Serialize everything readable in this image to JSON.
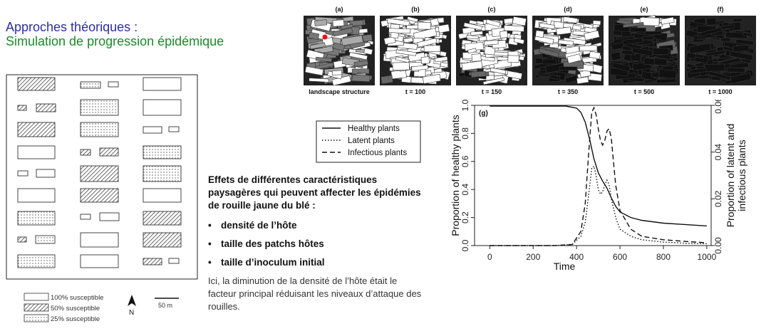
{
  "header": {
    "line1": "Approches théoriques :",
    "line2": "Simulation de progression épidémique"
  },
  "text": {
    "heading": "Effets de différentes caractéristiques paysagères qui peuvent affecter les épidémies de rouille jaune du blé :",
    "bullets": [
      "densité de l’hôte",
      "taille des patchs hôtes",
      "taille d’inoculum initial"
    ],
    "paragraph": "Ici, la diminution de la densité de l’hôte était le facteur principal réduisant les niveaux d’attaque des rouilles."
  },
  "landscape_figure": {
    "legend": [
      "100% susceptible",
      "50% susceptible",
      "25% susceptible"
    ],
    "north": "N",
    "scale": "50 m"
  },
  "panels": {
    "labels": [
      "(a)",
      "(b)",
      "(c)",
      "(d)",
      "(e)",
      "(f)"
    ],
    "captions": [
      "landscape structure",
      "t = 100",
      "t = 150",
      "t = 350",
      "t = 500",
      "t = 1000"
    ],
    "infection_level": [
      0,
      0.05,
      0.1,
      0.3,
      0.6,
      0.85
    ]
  },
  "chart_data": {
    "type": "line",
    "panel_label": "(g)",
    "xlabel": "Time",
    "ylabel_left": "Proportion of healthy plants",
    "ylabel_right": "Proportion of latent and infectious plants",
    "xlim": [
      -70,
      1020
    ],
    "ylim_left": [
      0,
      1.0
    ],
    "ylim_right": [
      0,
      0.06
    ],
    "x_ticks": [
      "0",
      "200",
      "400",
      "600",
      "800",
      "1000"
    ],
    "y_left_ticks": [
      "0.0",
      "0.2",
      "0.4",
      "0.6",
      "0.8",
      "1.0"
    ],
    "y_right_ticks": [
      "0.00",
      "0.02",
      "0.04",
      "0.06"
    ],
    "legend": [
      "Healthy plants",
      "Latent plants",
      "Infectious plants"
    ],
    "series": [
      {
        "name": "Healthy plants",
        "axis": "left",
        "style": "solid",
        "x": [
          0,
          200,
          350,
          400,
          420,
          440,
          460,
          480,
          500,
          520,
          540,
          560,
          580,
          600,
          650,
          700,
          800,
          900,
          1000
        ],
        "y": [
          0.995,
          0.995,
          0.995,
          0.98,
          0.95,
          0.88,
          0.76,
          0.62,
          0.52,
          0.46,
          0.41,
          0.34,
          0.28,
          0.24,
          0.2,
          0.18,
          0.16,
          0.15,
          0.14
        ]
      },
      {
        "name": "Latent plants",
        "axis": "right",
        "style": "dotted",
        "x": [
          0,
          300,
          380,
          420,
          440,
          460,
          470,
          480,
          490,
          500,
          510,
          520,
          530,
          540,
          550,
          560,
          580,
          600,
          650,
          700,
          800,
          900,
          1000
        ],
        "y": [
          0,
          0,
          0.0005,
          0.004,
          0.01,
          0.025,
          0.033,
          0.034,
          0.03,
          0.024,
          0.022,
          0.023,
          0.026,
          0.028,
          0.026,
          0.02,
          0.012,
          0.007,
          0.004,
          0.0025,
          0.0015,
          0.001,
          0.0008
        ]
      },
      {
        "name": "Infectious plants",
        "axis": "right",
        "style": "dashed",
        "x": [
          0,
          300,
          380,
          420,
          440,
          460,
          470,
          480,
          490,
          500,
          510,
          520,
          530,
          540,
          550,
          560,
          570,
          580,
          600,
          650,
          700,
          800,
          900,
          1000
        ],
        "y": [
          0,
          0,
          0.0005,
          0.006,
          0.018,
          0.045,
          0.057,
          0.059,
          0.056,
          0.05,
          0.045,
          0.043,
          0.045,
          0.049,
          0.05,
          0.046,
          0.036,
          0.026,
          0.015,
          0.007,
          0.004,
          0.0025,
          0.0018,
          0.0012
        ]
      }
    ]
  }
}
